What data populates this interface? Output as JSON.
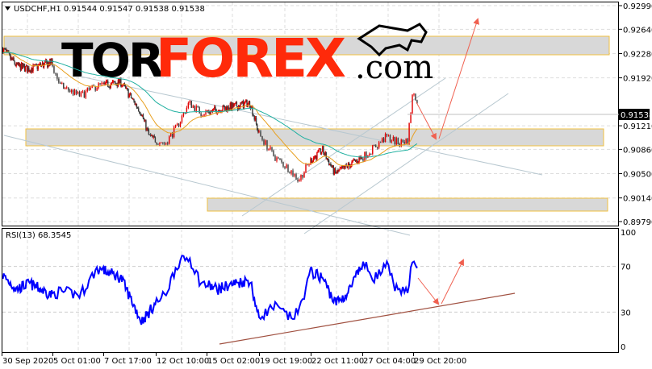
{
  "header": {
    "symbol_info": "USDCHF,H1  0.91544 0.91547 0.91538 0.91538"
  },
  "logo": {
    "text_black": "TOR",
    "text_red": "FOREX",
    "text_domain": ".com"
  },
  "colors": {
    "bull": "#e00000",
    "bear": "#3a3a3a",
    "ma_fast": "#e8a020",
    "ma_slow": "#20b0a0",
    "rsi": "#0000ff",
    "zone_border": "#f0c040",
    "zone_fill": "#d8d8d8",
    "arrow": "#f06050",
    "trendline": "#b8c8d0",
    "rsi_trendline": "#a05040",
    "price_tag_bg": "#000000"
  },
  "chart_data": [
    {
      "type": "candlestick",
      "title": "USDCHF,H1",
      "price_axis": {
        "ticks": [
          "0.92990",
          "0.92640",
          "0.92280",
          "0.91920",
          "0.91210",
          "0.90860",
          "0.90500",
          "0.90140",
          "0.89790"
        ],
        "range": [
          0.8979,
          0.9299
        ],
        "current_price": "0.91538"
      },
      "time_axis": {
        "ticks": [
          "30 Sep 2020",
          "5 Oct 01:00",
          "7 Oct 17:00",
          "12 Oct 10:00",
          "15 Oct 02:00",
          "19 Oct 19:00",
          "22 Oct 11:00",
          "27 Oct 04:00",
          "29 Oct 20:00"
        ]
      },
      "grid": true,
      "close": [
        [
          "30 Sep 03:00",
          0.9235
        ],
        [
          "1 Oct 11:00",
          0.921
        ],
        [
          "2 Oct 18:00",
          0.9205
        ],
        [
          "4 Oct 23:00",
          0.9215
        ],
        [
          "5 Oct 11:00",
          0.918
        ],
        [
          "6 Oct 12:00",
          0.9165
        ],
        [
          "7 Oct 09:00",
          0.918
        ],
        [
          "9 Oct 07:00",
          0.9185
        ],
        [
          "11 Oct 03:00",
          0.914
        ],
        [
          "11 Oct 20:00",
          0.9105
        ],
        [
          "12 Oct 22:00",
          0.9095
        ],
        [
          "13 Oct 13:00",
          0.912
        ],
        [
          "14 Oct 04:00",
          0.9155
        ],
        [
          "14 Oct 19:00",
          0.914
        ],
        [
          "16 Oct 02:00",
          0.9145
        ],
        [
          "17 Oct 13:00",
          0.915
        ],
        [
          "19 Oct 00:00",
          0.9155
        ],
        [
          "19 Oct 18:00",
          0.911
        ],
        [
          "20 Oct 14:00",
          0.9075
        ],
        [
          "21 Oct 10:00",
          0.9055
        ],
        [
          "21 Oct 20:00",
          0.904
        ],
        [
          "22 Oct 11:00",
          0.907
        ],
        [
          "23 Oct 13:00",
          0.9085
        ],
        [
          "24 Oct 16:00",
          0.905
        ],
        [
          "25 Oct 18:00",
          0.906
        ],
        [
          "27 Oct 05:00",
          0.9075
        ],
        [
          "27 Oct 20:00",
          0.909
        ],
        [
          "28 Oct 11:00",
          0.9105
        ],
        [
          "29 Oct 02:00",
          0.9095
        ],
        [
          "29 Oct 13:00",
          0.91
        ],
        [
          "29 Oct 20:00",
          0.9175
        ],
        [
          "30 Oct 02:00",
          0.91538
        ]
      ]
    },
    {
      "type": "line",
      "label": "RSI(13) 68.3545",
      "y_axis": {
        "ticks": [
          "100",
          "70",
          "30",
          "0"
        ],
        "range": [
          0,
          100
        ]
      },
      "values": [
        [
          "30 Sep 03:00",
          62
        ],
        [
          "1 Oct 11:00",
          50
        ],
        [
          "2 Oct 18:00",
          55
        ],
        [
          "4 Oct 23:00",
          45
        ],
        [
          "5 Oct 11:00",
          48
        ],
        [
          "6 Oct 12:00",
          45
        ],
        [
          "7 Oct 09:00",
          68
        ],
        [
          "9 Oct 07:00",
          60
        ],
        [
          "11 Oct 03:00",
          22
        ],
        [
          "11 Oct 20:00",
          30
        ],
        [
          "12 Oct 22:00",
          45
        ],
        [
          "13 Oct 13:00",
          72
        ],
        [
          "14 Oct 04:00",
          78
        ],
        [
          "14 Oct 19:00",
          55
        ],
        [
          "16 Oct 02:00",
          50
        ],
        [
          "17 Oct 13:00",
          55
        ],
        [
          "19 Oct 00:00",
          58
        ],
        [
          "19 Oct 18:00",
          25
        ],
        [
          "20 Oct 14:00",
          35
        ],
        [
          "21 Oct 10:00",
          25
        ],
        [
          "21 Oct 20:00",
          30
        ],
        [
          "22 Oct 11:00",
          65
        ],
        [
          "23 Oct 13:00",
          60
        ],
        [
          "24 Oct 16:00",
          38
        ],
        [
          "25 Oct 18:00",
          45
        ],
        [
          "27 Oct 05:00",
          72
        ],
        [
          "27 Oct 20:00",
          60
        ],
        [
          "28 Oct 11:00",
          70
        ],
        [
          "29 Oct 02:00",
          45
        ],
        [
          "29 Oct 13:00",
          50
        ],
        [
          "29 Oct 20:00",
          80
        ],
        [
          "30 Oct 02:00",
          68.3545
        ]
      ]
    }
  ]
}
